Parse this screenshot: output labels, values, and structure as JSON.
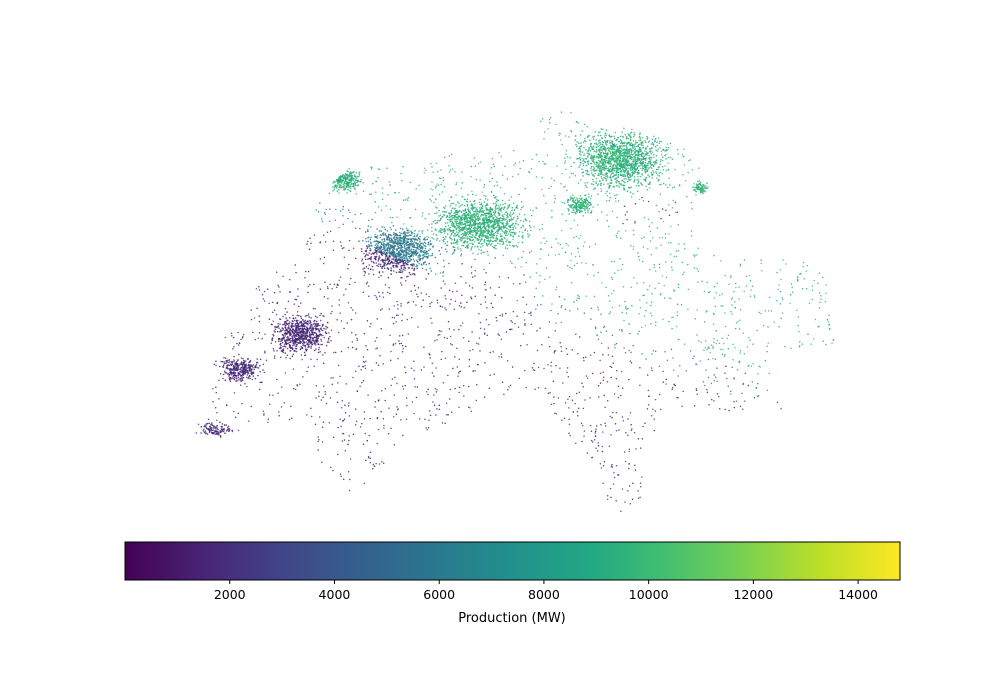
{
  "chart_data": {
    "type": "scatter",
    "title": "",
    "colorbar": {
      "label": "Production (MW)",
      "colormap": "viridis",
      "range": [
        0,
        14800
      ],
      "ticks": [
        2000,
        4000,
        6000,
        8000,
        10000,
        12000,
        14000
      ],
      "tick_labels": [
        "2000",
        "4000",
        "6000",
        "8000",
        "10000",
        "12000",
        "14000"
      ],
      "orientation": "horizontal"
    },
    "axes_visible": false,
    "marker": "dot",
    "colors": {
      "low": "#440154",
      "mid": "#21918c",
      "high": "#fde725"
    }
  }
}
